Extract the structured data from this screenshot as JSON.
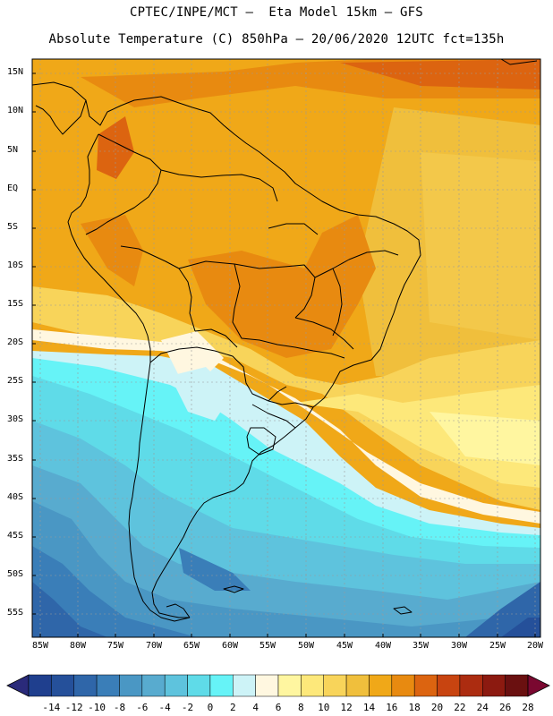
{
  "title": {
    "line1": "CPTEC/INPE/MCT –  Eta Model 15km – GFS",
    "line2": "Absolute Temperature (C) 850hPa – 20/06/2020 12UTC fct=135h"
  },
  "map": {
    "lat_labels": [
      "15N",
      "10N",
      "5N",
      "EQ",
      "5S",
      "10S",
      "15S",
      "20S",
      "25S",
      "30S",
      "35S",
      "40S",
      "45S",
      "50S",
      "55S"
    ],
    "lon_labels": [
      "85W",
      "80W",
      "75W",
      "70W",
      "65W",
      "60W",
      "55W",
      "50W",
      "45W",
      "40W",
      "35W",
      "30W",
      "25W",
      "20W"
    ]
  },
  "colorbar": {
    "labels": [
      "-14",
      "-12",
      "-10",
      "-8",
      "-6",
      "-4",
      "-2",
      "0",
      "2",
      "4",
      "6",
      "8",
      "10",
      "12",
      "14",
      "16",
      "18",
      "20",
      "22",
      "24",
      "26",
      "28"
    ],
    "colors": [
      "#1f3f8e",
      "#25509a",
      "#2f66a9",
      "#3a7eb8",
      "#4a97c4",
      "#58abcf",
      "#5ec3dd",
      "#5fdbe8",
      "#66f3f7",
      "#cdf3f7",
      "#fff7e0",
      "#fff6a0",
      "#fde87a",
      "#f8d45a",
      "#f0bf3c",
      "#f0a818",
      "#e88a10",
      "#dc6410",
      "#c84410",
      "#ac2c10",
      "#8c1a10",
      "#6a1010"
    ],
    "left_arrow_color": "#2a2a7a",
    "right_arrow_color": "#7a0830"
  }
}
